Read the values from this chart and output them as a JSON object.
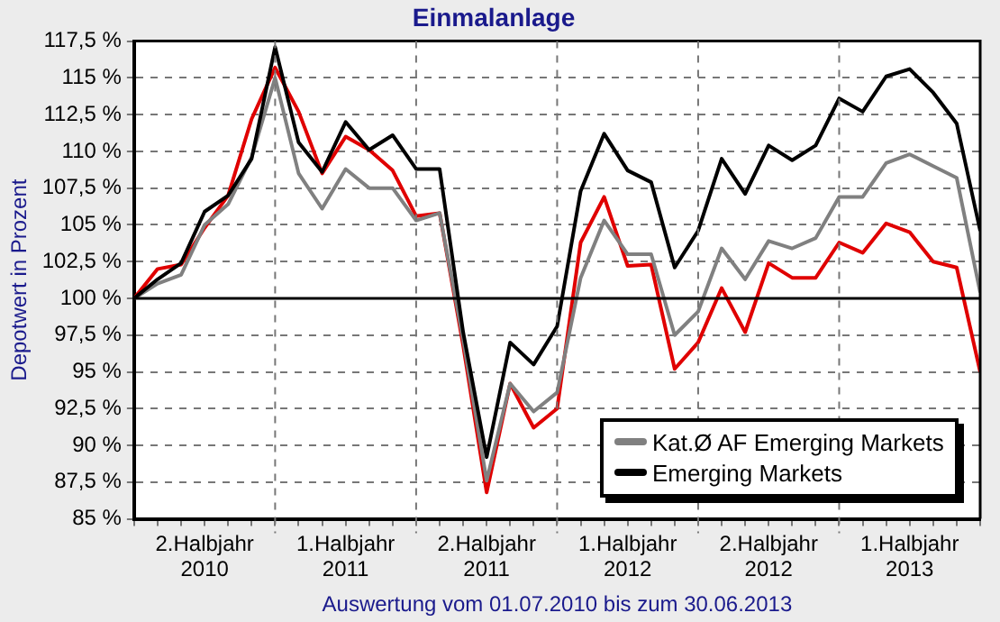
{
  "chart_data": {
    "type": "line",
    "title": "Einmalanlage",
    "ylabel": "Depotwert in Prozent",
    "xlabel": "Auswertung vom 01.07.2010 bis zum 30.06.2013",
    "categories": [
      null,
      null,
      null,
      "2.Halbjahr\n2010",
      null,
      null,
      null,
      null,
      null,
      "1.Halbjahr\n2011",
      null,
      null,
      null,
      null,
      null,
      "2.Halbjahr\n2011",
      null,
      null,
      null,
      null,
      null,
      "1.Halbjahr\n2012",
      null,
      null,
      null,
      null,
      null,
      "2.Halbjahr\n2012",
      null,
      null,
      null,
      null,
      null,
      "1.Halbjahr\n2013",
      null,
      null,
      null
    ],
    "ylim": [
      85,
      117.5
    ],
    "yticks": [
      {
        "value": 85,
        "label": "85 %"
      },
      {
        "value": 87.5,
        "label": "87,5 %"
      },
      {
        "value": 90,
        "label": "90 %"
      },
      {
        "value": 92.5,
        "label": "92,5 %"
      },
      {
        "value": 95,
        "label": "95 %"
      },
      {
        "value": 97.5,
        "label": "97,5 %"
      },
      {
        "value": 100,
        "label": "100 %"
      },
      {
        "value": 102.5,
        "label": "102,5 %"
      },
      {
        "value": 105,
        "label": "105 %"
      },
      {
        "value": 107.5,
        "label": "107,5 %"
      },
      {
        "value": 110,
        "label": "110 %"
      },
      {
        "value": 112.5,
        "label": "112,5 %"
      },
      {
        "value": 115,
        "label": "115 %"
      },
      {
        "value": 117.5,
        "label": "117,5 %"
      }
    ],
    "grid": true,
    "legend": "bottom right",
    "marker": "none",
    "line_style": "solid",
    "ref_lines": [
      {
        "axis": "y",
        "value": 100,
        "color": "#000000",
        "line_style": "solid"
      }
    ],
    "series": [
      {
        "color": "#e00000",
        "values": [
          100,
          102.0,
          102.3,
          104.8,
          107.0,
          112.2,
          115.7,
          112.7,
          108.5,
          111.0,
          110.1,
          108.7,
          105.6,
          105.8,
          96.8,
          86.8,
          94.2,
          91.2,
          92.5,
          103.8,
          106.9,
          102.2,
          102.3,
          95.2,
          97.0,
          100.7,
          97.7,
          102.4,
          101.4,
          101.4,
          103.8,
          103.1,
          105.1,
          104.5,
          102.5,
          102.1,
          95.0
        ]
      },
      {
        "name": "Kat.Ø AF Emerging Markets",
        "color": "#808080",
        "values": [
          100,
          101.0,
          101.6,
          105.0,
          106.4,
          109.6,
          115.0,
          108.5,
          106.1,
          108.8,
          107.5,
          107.5,
          105.3,
          105.8,
          97.2,
          87.6,
          94.2,
          92.3,
          93.6,
          101.4,
          105.3,
          103.0,
          103.0,
          97.5,
          99.1,
          103.4,
          101.3,
          103.9,
          103.4,
          104.1,
          106.9,
          106.9,
          109.2,
          109.8,
          109.0,
          108.2,
          100.4
        ]
      },
      {
        "name": "Emerging Markets",
        "color": "#000000",
        "values": [
          100,
          101.3,
          102.4,
          105.9,
          107.0,
          109.5,
          117.1,
          110.6,
          108.6,
          112.0,
          110.1,
          111.1,
          108.8,
          108.8,
          97.7,
          89.2,
          97.0,
          95.5,
          98.1,
          107.3,
          111.2,
          108.7,
          107.9,
          102.1,
          104.6,
          109.5,
          107.1,
          110.4,
          109.4,
          110.4,
          113.6,
          112.7,
          115.1,
          115.6,
          114.0,
          111.9,
          104.6
        ]
      }
    ]
  }
}
